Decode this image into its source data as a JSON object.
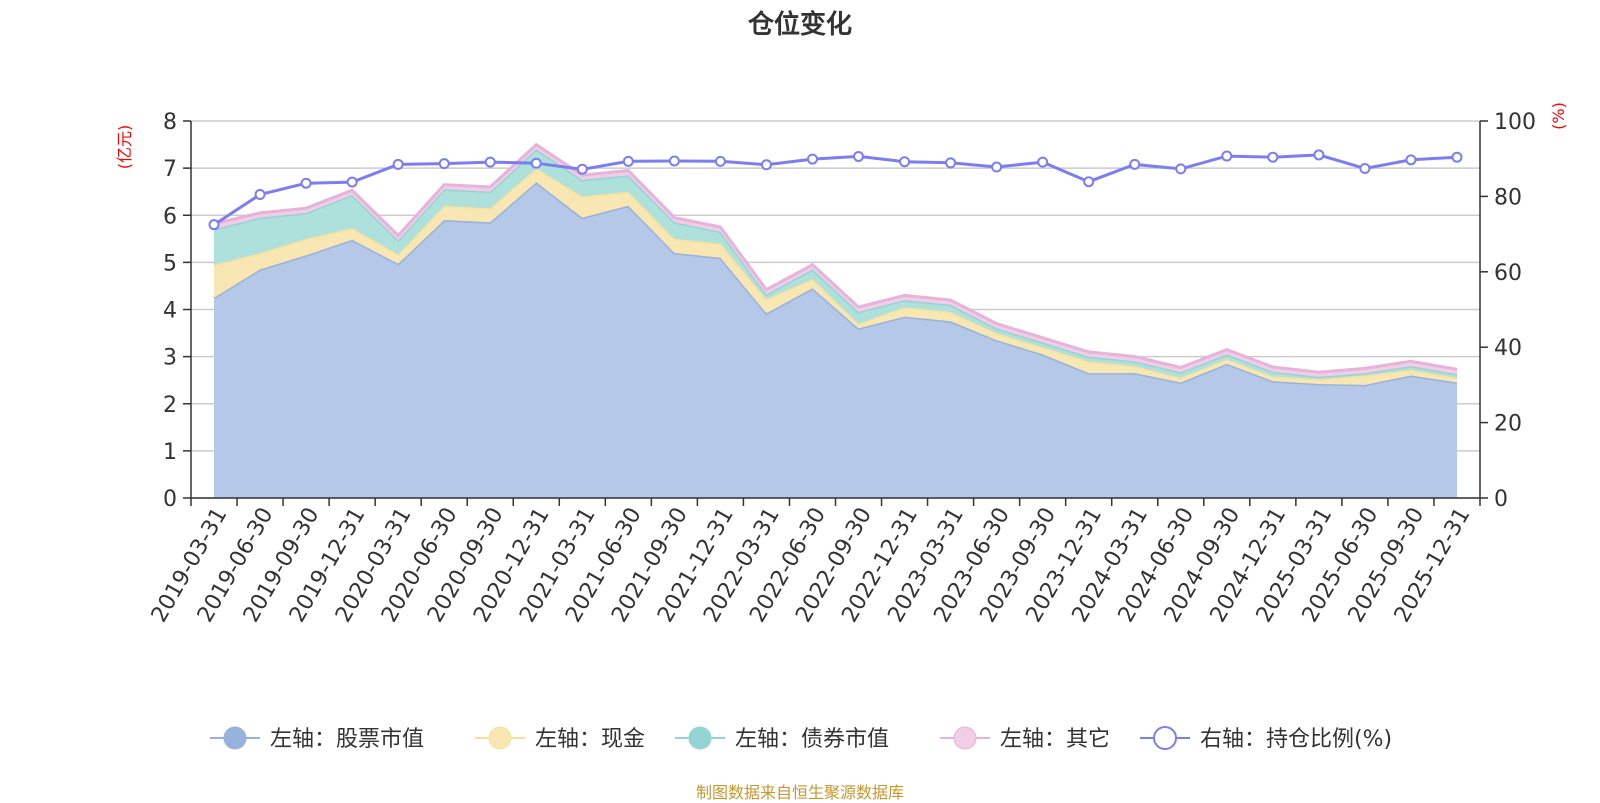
{
  "chart_data": {
    "type": "area",
    "title": "仓位变化",
    "left_axis_unit": "(亿元)",
    "right_axis_unit": "(%)",
    "left_ylim": [
      0,
      8
    ],
    "left_ticks": [
      "0",
      "1",
      "2",
      "3",
      "4",
      "5",
      "6",
      "7",
      "8"
    ],
    "right_ylim": [
      0,
      100
    ],
    "right_ticks": [
      "0",
      "20",
      "40",
      "60",
      "80",
      "100"
    ],
    "categories": [
      "2019-03-31",
      "2019-06-30",
      "2019-09-30",
      "2019-12-31",
      "2020-03-31",
      "2020-06-30",
      "2020-09-30",
      "2020-12-31",
      "2021-03-31",
      "2021-06-30",
      "2021-09-30",
      "2021-12-31",
      "2022-03-31",
      "2022-06-30",
      "2022-09-30",
      "2022-12-31",
      "2023-03-31",
      "2023-06-30",
      "2023-09-30",
      "2023-12-31",
      "2024-03-31",
      "2024-06-30",
      "2024-09-30",
      "2024-12-31",
      "2025-03-31",
      "2025-06-30",
      "2025-09-30",
      "2025-12-31"
    ],
    "stacked_series": [
      {
        "name": "左轴：股票市值",
        "axis": "left",
        "values": [
          4.25,
          4.85,
          5.15,
          5.48,
          4.97,
          5.9,
          5.85,
          6.7,
          5.95,
          6.2,
          5.2,
          5.1,
          3.92,
          4.45,
          3.6,
          3.85,
          3.75,
          3.35,
          3.05,
          2.65,
          2.65,
          2.45,
          2.85,
          2.48,
          2.42,
          2.4,
          2.6,
          2.45
        ]
      },
      {
        "name": "左轴：现金",
        "axis": "left",
        "values": [
          0.7,
          0.35,
          0.35,
          0.25,
          0.2,
          0.3,
          0.3,
          0.3,
          0.45,
          0.3,
          0.3,
          0.3,
          0.3,
          0.2,
          0.1,
          0.2,
          0.2,
          0.15,
          0.15,
          0.25,
          0.15,
          0.1,
          0.1,
          0.1,
          0.1,
          0.2,
          0.12,
          0.1
        ]
      },
      {
        "name": "左轴：债券市值",
        "axis": "left",
        "values": [
          0.75,
          0.75,
          0.55,
          0.7,
          0.3,
          0.35,
          0.35,
          0.4,
          0.35,
          0.35,
          0.35,
          0.25,
          0.1,
          0.2,
          0.25,
          0.15,
          0.15,
          0.1,
          0.1,
          0.1,
          0.1,
          0.12,
          0.1,
          0.1,
          0.05,
          0.05,
          0.08,
          0.08
        ]
      },
      {
        "name": "左轴：其它",
        "axis": "left",
        "values": [
          0.12,
          0.1,
          0.1,
          0.1,
          0.1,
          0.1,
          0.1,
          0.1,
          0.1,
          0.1,
          0.1,
          0.1,
          0.1,
          0.1,
          0.1,
          0.1,
          0.1,
          0.1,
          0.1,
          0.1,
          0.1,
          0.1,
          0.1,
          0.1,
          0.1,
          0.1,
          0.1,
          0.1
        ]
      }
    ],
    "line_series": {
      "name": "右轴：持仓比例(%)",
      "axis": "right",
      "values": [
        72.5,
        80.5,
        83.5,
        83.8,
        88.5,
        88.7,
        89.1,
        88.8,
        87.2,
        89.3,
        89.4,
        89.3,
        88.4,
        89.9,
        90.6,
        89.2,
        88.9,
        87.8,
        89.1,
        83.9,
        88.5,
        87.3,
        90.7,
        90.4,
        91.0,
        87.4,
        89.7,
        90.4
      ]
    },
    "colors": {
      "stock_fill": "#b6c8e8",
      "stock_line": "#97b2dd",
      "cash_fill": "#f8e7b2",
      "cash_line": "#f6e1a0",
      "bond_fill": "#aee0dc",
      "bond_line": "#95d4d4",
      "other_fill": "#f2cde5",
      "other_line": "#e5b3db",
      "ratio_line": "#7b7ef0",
      "grid": "#cccccc",
      "axis": "#333333",
      "unit_label": "#ff0000",
      "footer": "#c8962e"
    }
  },
  "footer": "制图数据来自恒生聚源数据库"
}
